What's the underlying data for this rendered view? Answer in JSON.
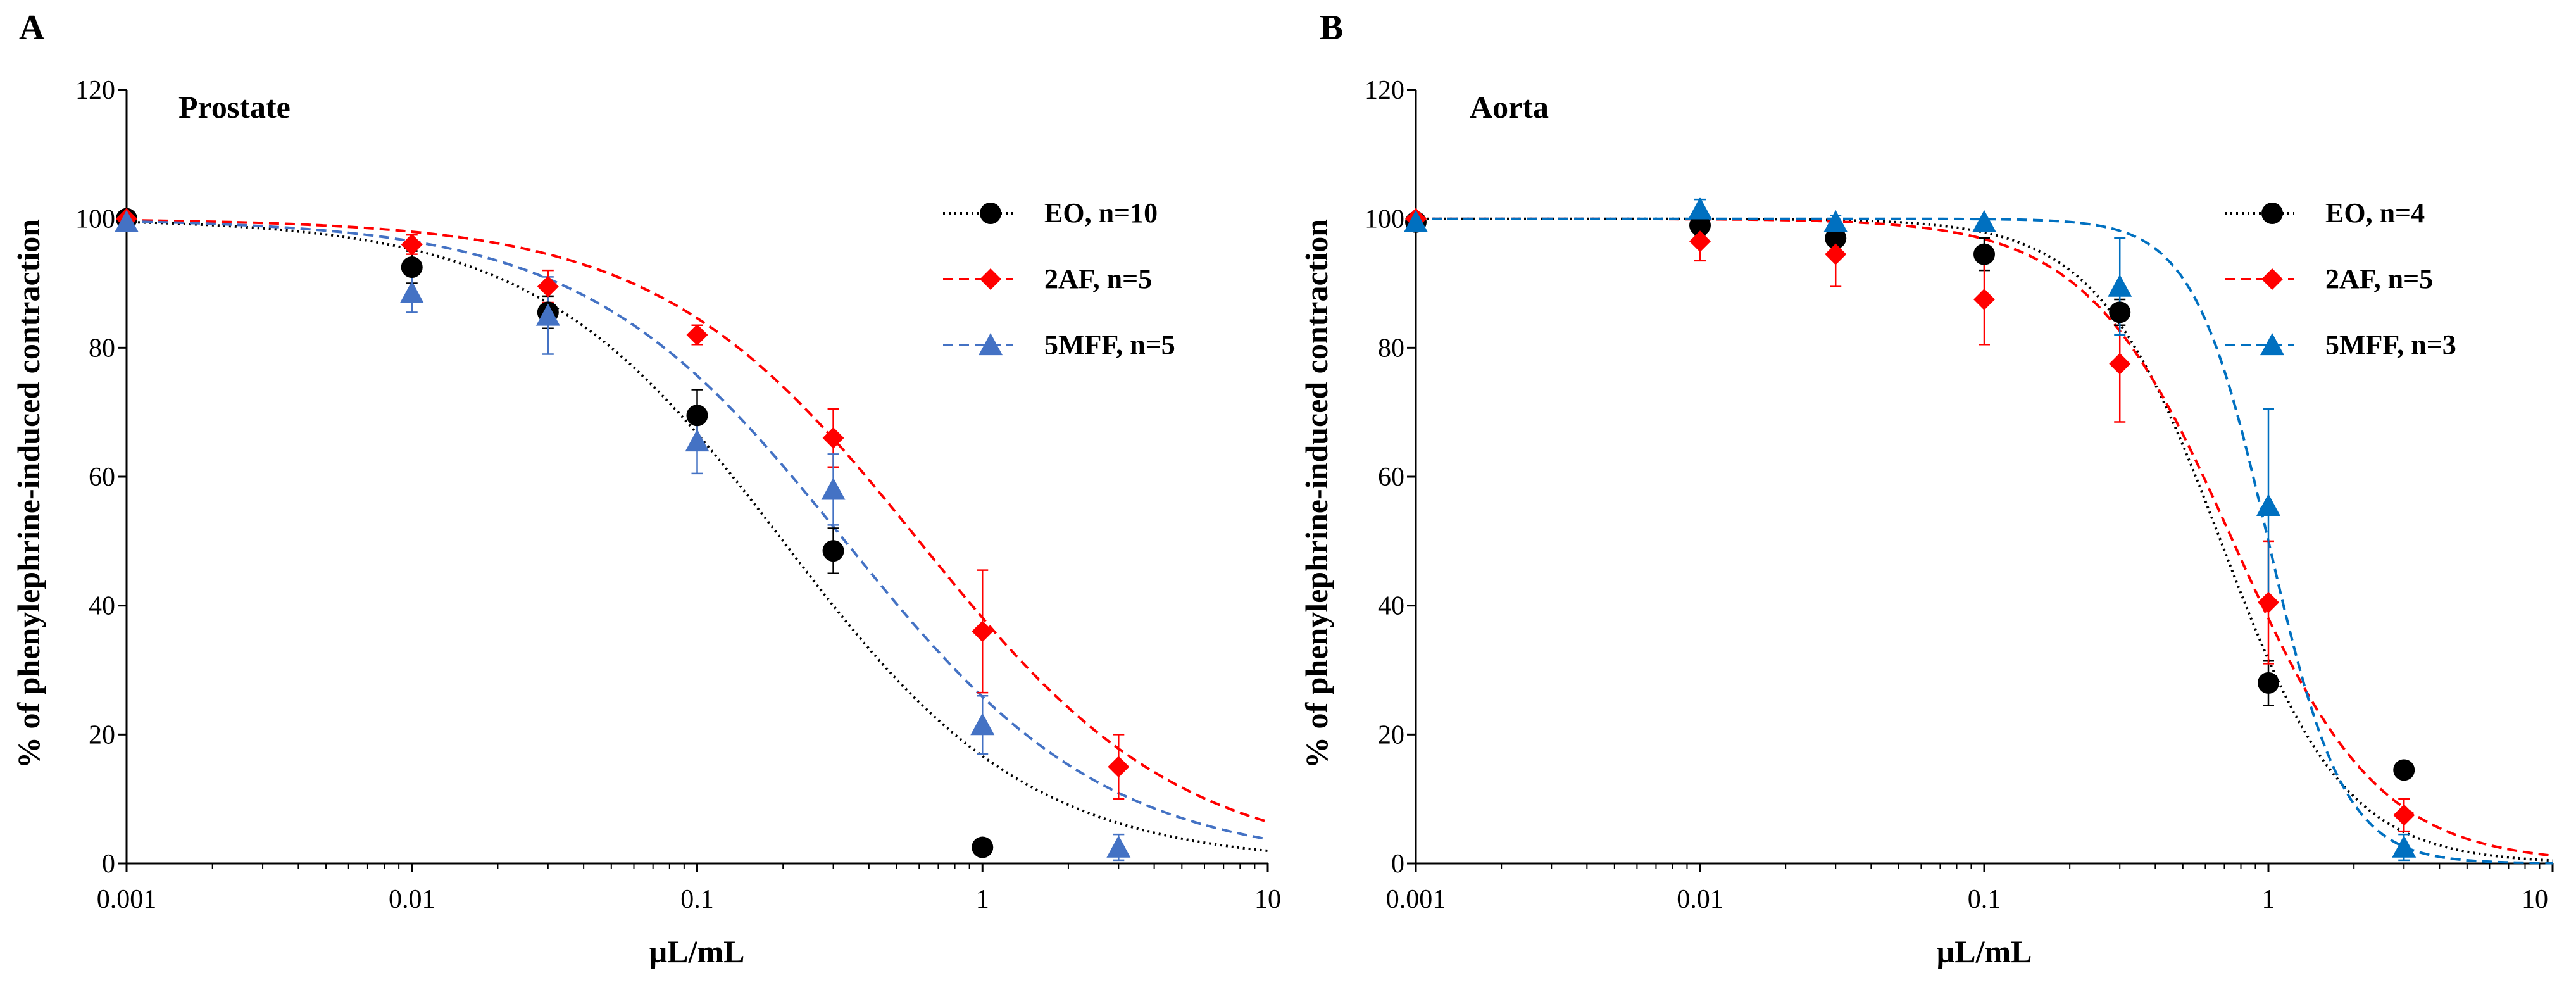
{
  "chart_data": [
    {
      "panel_label": "A",
      "type": "scatter",
      "title": "Prostate",
      "xlabel": "µL/mL",
      "ylabel": "% of phenylephrine-induced contraction",
      "x_scale": "log",
      "xlim": [
        0.001,
        10
      ],
      "ylim": [
        0,
        120
      ],
      "x_ticks": [
        "0.001",
        "0.01",
        "0.1",
        "1",
        "10"
      ],
      "y_ticks": [
        "0",
        "20",
        "40",
        "60",
        "80",
        "100",
        "120"
      ],
      "legend_position": "top-right",
      "grid": false,
      "series": [
        {
          "name": "EO, n=10",
          "marker": "circle",
          "color": "#000000",
          "line_style": "dotted",
          "ic50": 0.2,
          "hill": 1.0,
          "x": [
            0.001,
            0.01,
            0.03,
            0.1,
            0.3,
            1
          ],
          "y": [
            100,
            92.5,
            85.5,
            69.5,
            48.5,
            2.5
          ],
          "err": [
            0,
            2.5,
            2.5,
            4,
            3.5,
            0
          ]
        },
        {
          "name": "2AF, n=5",
          "marker": "diamond",
          "color": "#ff0000",
          "line_style": "dashed",
          "ic50": 0.6,
          "hill": 0.95,
          "x": [
            0.001,
            0.01,
            0.03,
            0.1,
            0.3,
            1,
            3
          ],
          "y": [
            100,
            96,
            89.5,
            82,
            66,
            36,
            15
          ],
          "err": [
            0,
            1.5,
            2.5,
            1.5,
            4.5,
            9.5,
            5
          ]
        },
        {
          "name": "5MFF, n=5",
          "marker": "triangle",
          "color": "#4472c4",
          "line_style": "dashed",
          "ic50": 0.33,
          "hill": 0.95,
          "x": [
            0.001,
            0.01,
            0.03,
            0.1,
            0.3,
            1,
            3
          ],
          "y": [
            99.5,
            88.5,
            85,
            65.5,
            58,
            21.5,
            2.5
          ],
          "err": [
            0,
            3,
            6,
            5,
            5.5,
            4.5,
            2
          ]
        }
      ]
    },
    {
      "panel_label": "B",
      "type": "scatter",
      "title": "Aorta",
      "xlabel": "µL/mL",
      "ylabel": "% of phenylephrine-induced contraction",
      "x_scale": "log",
      "xlim": [
        0.001,
        10
      ],
      "ylim": [
        0,
        120
      ],
      "x_ticks": [
        "0.001",
        "0.01",
        "0.1",
        "1",
        "10"
      ],
      "y_ticks": [
        "0",
        "20",
        "40",
        "60",
        "80",
        "100",
        "120"
      ],
      "legend_position": "top-right",
      "grid": false,
      "series": [
        {
          "name": "EO, n=4",
          "marker": "circle",
          "color": "#000000",
          "line_style": "dotted",
          "ic50": 0.68,
          "hill": 2.0,
          "x": [
            0.001,
            0.01,
            0.03,
            0.1,
            0.3,
            1,
            3
          ],
          "y": [
            99.5,
            99,
            97,
            94.5,
            85.5,
            28,
            14.5
          ],
          "err": [
            0,
            1.5,
            2,
            2.5,
            2,
            3.5,
            0
          ]
        },
        {
          "name": "2AF, n=5",
          "marker": "diamond",
          "color": "#ff0000",
          "line_style": "dashed",
          "ic50": 0.75,
          "hill": 1.7,
          "x": [
            0.001,
            0.01,
            0.03,
            0.1,
            0.3,
            1,
            3
          ],
          "y": [
            100,
            96.5,
            94.5,
            87.5,
            77.5,
            40.5,
            7.5
          ],
          "err": [
            0,
            3,
            5,
            7,
            9,
            9.5,
            2.5
          ]
        },
        {
          "name": "5MFF, n=3",
          "marker": "triangle",
          "color": "#0070c0",
          "line_style": "dashed",
          "ic50": 1.0,
          "hill": 3.3,
          "x": [
            0.001,
            0.01,
            0.03,
            0.1,
            0.3,
            1,
            3
          ],
          "y": [
            99.5,
            101.5,
            99.5,
            99.5,
            89.5,
            55.5,
            2.5
          ],
          "err": [
            0,
            1.5,
            1,
            0,
            7.5,
            15,
            2
          ]
        }
      ]
    }
  ]
}
